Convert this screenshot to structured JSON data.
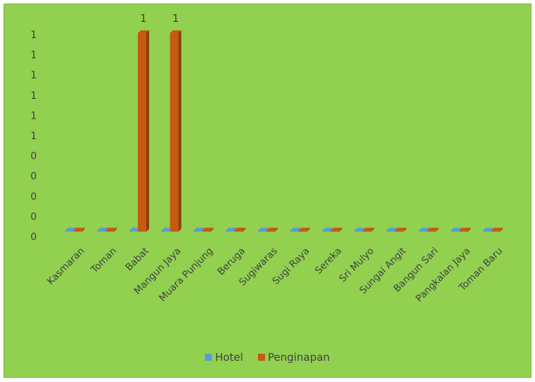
{
  "chart_data": {
    "type": "bar",
    "bar_style": "3d-clustered-column",
    "categories": [
      "Kasmaran",
      "Toman",
      "Babat",
      "Mangun Jaya",
      "Muara Punjung",
      "Beruga",
      "Sugiwaras",
      "Sugi Raya",
      "Sereka",
      "Sri Mulyo",
      "Sungai Angit",
      "Bangun Sari",
      "Pangkalan Jaya",
      "Toman Baru"
    ],
    "series": [
      {
        "name": "Hotel",
        "color": "#5b9bd5",
        "values": [
          0,
          0,
          0,
          0,
          0,
          0,
          0,
          0,
          0,
          0,
          0,
          0,
          0,
          0
        ]
      },
      {
        "name": "Penginapan",
        "color": "#c55a11",
        "values": [
          0,
          0,
          1,
          1,
          0,
          0,
          0,
          0,
          0,
          0,
          0,
          0,
          0,
          0
        ]
      }
    ],
    "data_labels": [
      {
        "category": "Babat",
        "series": "Penginapan",
        "text": "1"
      },
      {
        "category": "Mangun Jaya",
        "series": "Penginapan",
        "text": "1"
      }
    ],
    "y_tick_labels": [
      "0",
      "0",
      "0",
      "0",
      "0",
      "1",
      "1",
      "1",
      "1",
      "1",
      "1"
    ],
    "ylim": [
      0,
      1
    ],
    "title": "",
    "xlabel": "",
    "ylabel": "",
    "grid": false,
    "legend_position": "bottom",
    "background_color": "#92d050",
    "text_color": "#404040"
  }
}
